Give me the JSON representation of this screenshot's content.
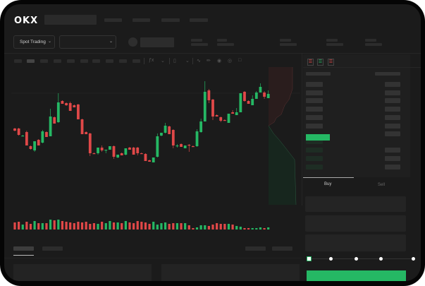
{
  "brand": {
    "logo": "OKX"
  },
  "header": {
    "market_selector": "Spot Trading",
    "buy_tab": "Buy",
    "sell_tab": "Sell",
    "buy_color": "#25b864",
    "sell_color": "#e04848"
  },
  "toolbar": {
    "icons": [
      "indicator-icon",
      "chevron-down-icon",
      "candle-type-icon",
      "chevron-down-icon",
      "line-tool-icon",
      "ruler-icon",
      "camera-icon",
      "settings-icon",
      "fullscreen-icon"
    ]
  },
  "orderbook": {
    "icons": [
      "orderbook-both-icon",
      "orderbook-bids-icon",
      "orderbook-asks-icon"
    ]
  },
  "order_form": {
    "leverage_steps": 5,
    "leverage_selected": 0
  },
  "chart": {
    "candles": [
      [
        68,
        69,
        64,
        65
      ],
      [
        68,
        69,
        58,
        59
      ],
      [
        57,
        59,
        57,
        58
      ],
      [
        63,
        65,
        44,
        44
      ],
      [
        43,
        44,
        38,
        39
      ],
      [
        37,
        50,
        35,
        50
      ],
      [
        52,
        53,
        44,
        44
      ],
      [
        48,
        66,
        47,
        64
      ],
      [
        63,
        64,
        56,
        56
      ],
      [
        57,
        96,
        57,
        85
      ],
      [
        84,
        85,
        75,
        75
      ],
      [
        77,
        118,
        76,
        105
      ],
      [
        107,
        108,
        103,
        103
      ],
      [
        104,
        105,
        100,
        101
      ],
      [
        104,
        106,
        93,
        93
      ],
      [
        101,
        102,
        98,
        98
      ],
      [
        102,
        103,
        81,
        81
      ],
      [
        81,
        82,
        60,
        60
      ],
      [
        63,
        64,
        60,
        60
      ],
      [
        61,
        62,
        29,
        33
      ],
      [
        33,
        34,
        32,
        32
      ],
      [
        33,
        41,
        31,
        41
      ],
      [
        41,
        44,
        35,
        37
      ],
      [
        37,
        38,
        33,
        38
      ],
      [
        38,
        43,
        38,
        43
      ],
      [
        43,
        44,
        25,
        28
      ],
      [
        27,
        31,
        26,
        31
      ],
      [
        33,
        34,
        30,
        30
      ],
      [
        31,
        40,
        30,
        40
      ],
      [
        41,
        42,
        38,
        38
      ],
      [
        41,
        42,
        31,
        31
      ],
      [
        41,
        42,
        30,
        33
      ],
      [
        33,
        34,
        32,
        32
      ],
      [
        32,
        33,
        22,
        22
      ],
      [
        23,
        24,
        21,
        21
      ],
      [
        20,
        27,
        20,
        27
      ],
      [
        28,
        61,
        27,
        57
      ],
      [
        58,
        62,
        57,
        62
      ],
      [
        62,
        76,
        61,
        72
      ],
      [
        71,
        72,
        60,
        60
      ],
      [
        66,
        67,
        40,
        44
      ],
      [
        43,
        46,
        41,
        44
      ],
      [
        46,
        47,
        42,
        42
      ],
      [
        40,
        44,
        40,
        44
      ],
      [
        45,
        46,
        35,
        44
      ],
      [
        43,
        44,
        42,
        42
      ],
      [
        43,
        67,
        42,
        64
      ],
      [
        63,
        82,
        62,
        78
      ],
      [
        78,
        135,
        78,
        120
      ],
      [
        122,
        124,
        104,
        108
      ],
      [
        109,
        110,
        80,
        85
      ],
      [
        87,
        88,
        85,
        85
      ],
      [
        84,
        85,
        77,
        79
      ],
      [
        80,
        81,
        79,
        79
      ],
      [
        76,
        89,
        76,
        89
      ],
      [
        91,
        94,
        89,
        89
      ],
      [
        87,
        97,
        87,
        91
      ],
      [
        91,
        118,
        91,
        118
      ],
      [
        120,
        121,
        106,
        107
      ],
      [
        107,
        108,
        103,
        103
      ],
      [
        101,
        115,
        101,
        110
      ],
      [
        110,
        121,
        110,
        119
      ],
      [
        119,
        132,
        119,
        127
      ],
      [
        119,
        121,
        110,
        113
      ],
      [
        111,
        122,
        111,
        117
      ]
    ],
    "volumes": [
      10,
      11,
      7,
      11,
      8,
      12,
      9,
      9,
      9,
      14,
      13,
      14,
      12,
      11,
      10,
      9,
      11,
      10,
      11,
      8,
      9,
      8,
      11,
      9,
      12,
      10,
      10,
      9,
      12,
      10,
      9,
      12,
      11,
      10,
      8,
      11,
      7,
      9,
      10,
      8,
      9,
      9,
      9,
      9,
      6,
      2,
      3,
      6,
      6,
      5,
      7,
      9,
      8,
      8,
      8,
      7,
      5,
      4,
      2,
      2,
      2,
      2,
      3,
      2,
      3
    ]
  }
}
